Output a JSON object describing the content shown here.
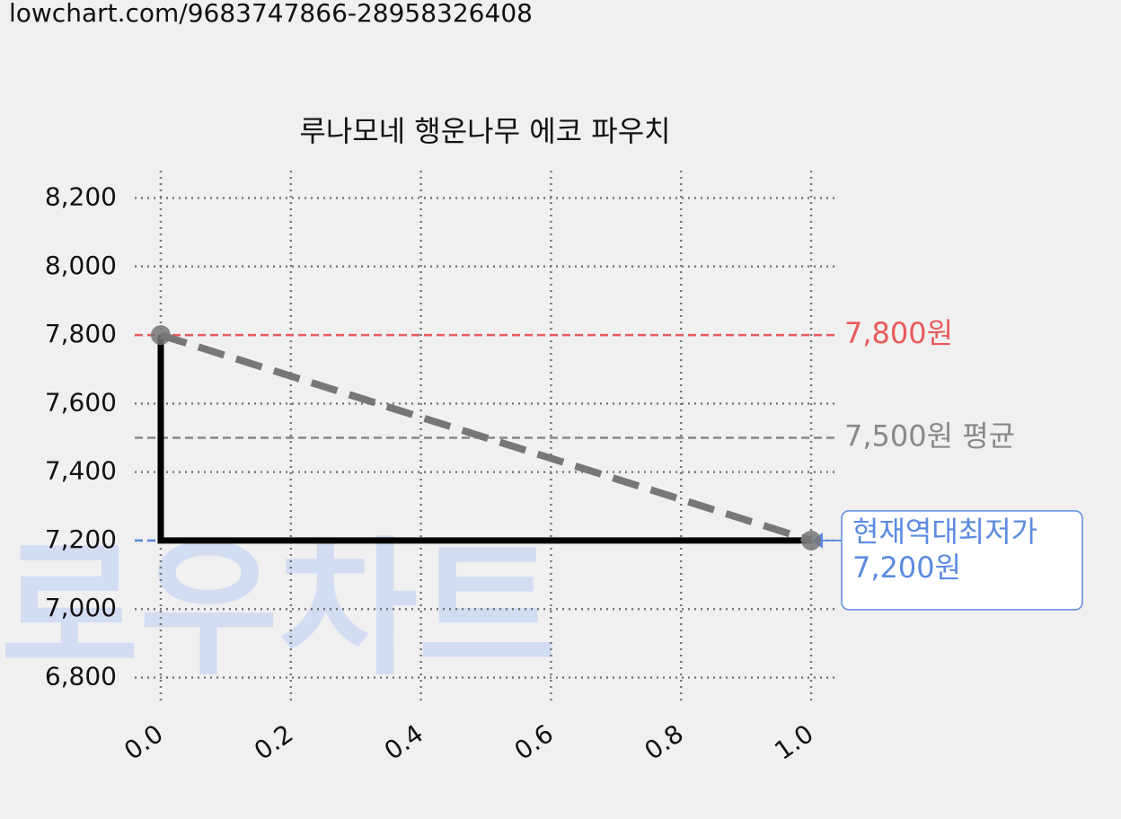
{
  "header": {
    "url": "lowchart.com/9683747866-28958326408"
  },
  "chart_data": {
    "type": "line",
    "title": "루나모네 행운나무 에코 파우치",
    "watermark": "로우차트",
    "x": [
      0,
      1
    ],
    "series": [
      {
        "color": "#000000",
        "values": [
          7800,
          7200
        ],
        "drawstyle": "steps-pre"
      },
      {
        "color": "#777777",
        "values": [
          7800,
          7200
        ],
        "linestyle": "dashed",
        "marker": true
      }
    ],
    "hlines": [
      {
        "value": 7800,
        "color": "#e85a5a",
        "label": [
          "7,800원"
        ]
      },
      {
        "value": 7500,
        "color": "#888888",
        "label": [
          "7,500원 평균"
        ]
      },
      {
        "value": 7200,
        "color": "#5b8be0",
        "label": [
          "현재역대최저가",
          "7,200원"
        ],
        "boxed": true
      }
    ],
    "xlim": [
      -0.04,
      1.04
    ],
    "ylim": [
      6720,
      8280
    ],
    "xticks": [
      {
        "value": 0,
        "label": "0.0"
      },
      0.2,
      0.4,
      0.6,
      0.8,
      {
        "value": 1,
        "label": "1.0"
      }
    ],
    "yticks": [
      {
        "value": 6800,
        "label": "6,800"
      },
      {
        "value": 7000,
        "label": "7,000"
      },
      {
        "value": 7200,
        "label": "7,200"
      },
      {
        "value": 7400,
        "label": "7,400"
      },
      {
        "value": 7600,
        "label": "7,600"
      },
      {
        "value": 7800,
        "label": "7,800"
      },
      {
        "value": 8000,
        "label": "8,000"
      },
      {
        "value": 8200,
        "label": "8,200"
      }
    ],
    "grid": true
  }
}
